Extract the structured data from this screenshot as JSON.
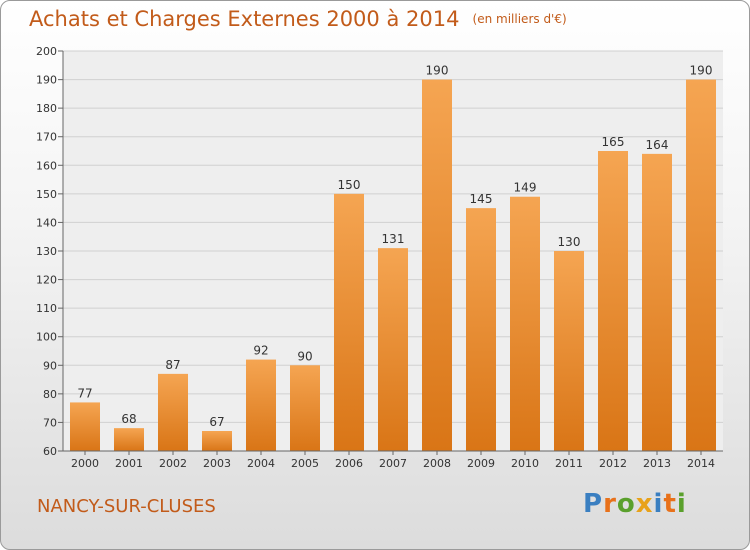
{
  "title": "Achats et Charges Externes 2000 à 2014",
  "unit": "(en milliers d'€)",
  "place": "NANCY-SUR-CLUSES",
  "logo": {
    "letters": [
      "P",
      "r",
      "o",
      "x",
      "i",
      "t",
      "i"
    ],
    "colors": [
      "#3a7fc1",
      "#e8711a",
      "#5aa02c",
      "#e8a21a",
      "#3a7fc1",
      "#e8711a",
      "#5aa02c"
    ]
  },
  "colors": {
    "bar_top": "#f5a552",
    "bar_bottom": "#d97516",
    "text": "#c25b1a"
  },
  "chart_data": {
    "type": "bar",
    "categories": [
      "2000",
      "2001",
      "2002",
      "2003",
      "2004",
      "2005",
      "2006",
      "2007",
      "2008",
      "2009",
      "2010",
      "2011",
      "2012",
      "2013",
      "2014"
    ],
    "values": [
      77,
      68,
      87,
      67,
      92,
      90,
      150,
      131,
      190,
      145,
      149,
      130,
      165,
      164,
      190
    ],
    "title": "Achats et Charges Externes 2000 à 2014",
    "ylim": [
      60,
      200
    ],
    "yticks": [
      60,
      70,
      80,
      90,
      100,
      110,
      120,
      130,
      140,
      150,
      160,
      170,
      180,
      190,
      200
    ],
    "grid": true,
    "data_labels": true
  }
}
